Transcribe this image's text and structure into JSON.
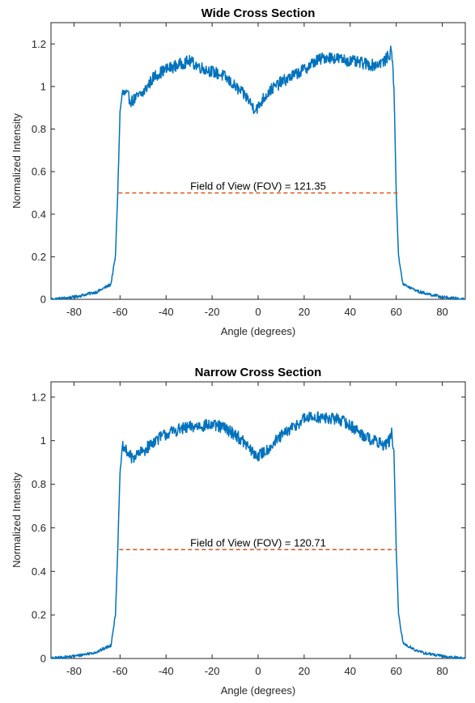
{
  "chart_data": [
    {
      "type": "line",
      "title": "Wide Cross Section",
      "xlabel": "Angle (degrees)",
      "ylabel": "Normalized Intensity",
      "xlim": [
        -90,
        90
      ],
      "ylim": [
        0,
        1.3
      ],
      "xticks": [
        -80,
        -60,
        -40,
        -20,
        0,
        20,
        40,
        60,
        80
      ],
      "xtick_labels": [
        "-80",
        "-60",
        "-40",
        "-20",
        "0",
        "20",
        "40",
        "60",
        "80"
      ],
      "yticks": [
        0,
        0.2,
        0.4,
        0.6,
        0.8,
        1,
        1.2
      ],
      "ytick_labels": [
        "0",
        "0.2",
        "0.4",
        "0.6",
        "0.8",
        "1",
        "1.2"
      ],
      "grid": false,
      "series": [
        {
          "color": "#0072BD",
          "profile": [
            [
              -90,
              0.0
            ],
            [
              -80,
              0.01
            ],
            [
              -70,
              0.035
            ],
            [
              -64,
              0.07
            ],
            [
              -62,
              0.2
            ],
            [
              -61,
              0.5
            ],
            [
              -60,
              0.88
            ],
            [
              -59,
              0.97
            ],
            [
              -57,
              0.96
            ],
            [
              -55,
              0.93
            ],
            [
              -50,
              0.97
            ],
            [
              -45,
              1.05
            ],
            [
              -40,
              1.08
            ],
            [
              -35,
              1.1
            ],
            [
              -30,
              1.12
            ],
            [
              -25,
              1.09
            ],
            [
              -20,
              1.07
            ],
            [
              -15,
              1.05
            ],
            [
              -10,
              1.0
            ],
            [
              -5,
              0.95
            ],
            [
              -2,
              0.9
            ],
            [
              0,
              0.9
            ],
            [
              2,
              0.94
            ],
            [
              5,
              0.98
            ],
            [
              10,
              1.02
            ],
            [
              15,
              1.05
            ],
            [
              20,
              1.08
            ],
            [
              25,
              1.12
            ],
            [
              30,
              1.14
            ],
            [
              35,
              1.13
            ],
            [
              40,
              1.12
            ],
            [
              45,
              1.11
            ],
            [
              50,
              1.1
            ],
            [
              55,
              1.12
            ],
            [
              57,
              1.15
            ],
            [
              58,
              1.17
            ],
            [
              59,
              1.0
            ],
            [
              60,
              0.5
            ],
            [
              61,
              0.2
            ],
            [
              63,
              0.07
            ],
            [
              70,
              0.035
            ],
            [
              80,
              0.01
            ],
            [
              90,
              0.0
            ]
          ],
          "noise_amplitude": 0.028
        },
        {
          "color": "#D95319",
          "style": "dashed",
          "x": [
            -60.7,
            60.7
          ],
          "y": [
            0.5,
            0.5
          ]
        }
      ],
      "annotations": [
        {
          "text": "Field of View (FOV) = 121.35",
          "x": 0,
          "y": 0.5
        }
      ]
    },
    {
      "type": "line",
      "title": "Narrow Cross Section",
      "xlabel": "Angle (degrees)",
      "ylabel": "Normalized Intensity",
      "xlim": [
        -90,
        90
      ],
      "ylim": [
        0,
        1.27
      ],
      "xticks": [
        -80,
        -60,
        -40,
        -20,
        0,
        20,
        40,
        60,
        80
      ],
      "xtick_labels": [
        "-80",
        "-60",
        "-40",
        "-20",
        "0",
        "20",
        "40",
        "60",
        "80"
      ],
      "yticks": [
        0,
        0.2,
        0.4,
        0.6,
        0.8,
        1,
        1.2
      ],
      "ytick_labels": [
        "0",
        "0.2",
        "0.4",
        "0.6",
        "0.8",
        "1",
        "1.2"
      ],
      "grid": false,
      "series": [
        {
          "color": "#0072BD",
          "profile": [
            [
              -90,
              0.0
            ],
            [
              -80,
              0.01
            ],
            [
              -70,
              0.03
            ],
            [
              -64,
              0.06
            ],
            [
              -62,
              0.2
            ],
            [
              -61,
              0.5
            ],
            [
              -60,
              0.85
            ],
            [
              -59,
              0.97
            ],
            [
              -57,
              0.95
            ],
            [
              -55,
              0.92
            ],
            [
              -50,
              0.95
            ],
            [
              -45,
              1.0
            ],
            [
              -40,
              1.03
            ],
            [
              -35,
              1.05
            ],
            [
              -30,
              1.06
            ],
            [
              -25,
              1.07
            ],
            [
              -20,
              1.07
            ],
            [
              -15,
              1.06
            ],
            [
              -10,
              1.03
            ],
            [
              -5,
              0.98
            ],
            [
              -2,
              0.94
            ],
            [
              0,
              0.93
            ],
            [
              3,
              0.95
            ],
            [
              6,
              0.98
            ],
            [
              10,
              1.02
            ],
            [
              15,
              1.06
            ],
            [
              20,
              1.1
            ],
            [
              25,
              1.11
            ],
            [
              30,
              1.1
            ],
            [
              35,
              1.1
            ],
            [
              40,
              1.07
            ],
            [
              45,
              1.03
            ],
            [
              50,
              1.0
            ],
            [
              55,
              0.98
            ],
            [
              57,
              1.0
            ],
            [
              58,
              1.03
            ],
            [
              59,
              0.95
            ],
            [
              60,
              0.5
            ],
            [
              61,
              0.2
            ],
            [
              63,
              0.07
            ],
            [
              70,
              0.03
            ],
            [
              80,
              0.01
            ],
            [
              90,
              0.0
            ]
          ],
          "noise_amplitude": 0.028
        },
        {
          "color": "#D95319",
          "style": "dashed",
          "x": [
            -60.35,
            60.35
          ],
          "y": [
            0.5,
            0.5
          ]
        }
      ],
      "annotations": [
        {
          "text": "Field of View (FOV) = 120.71",
          "x": 0,
          "y": 0.5
        }
      ]
    }
  ]
}
